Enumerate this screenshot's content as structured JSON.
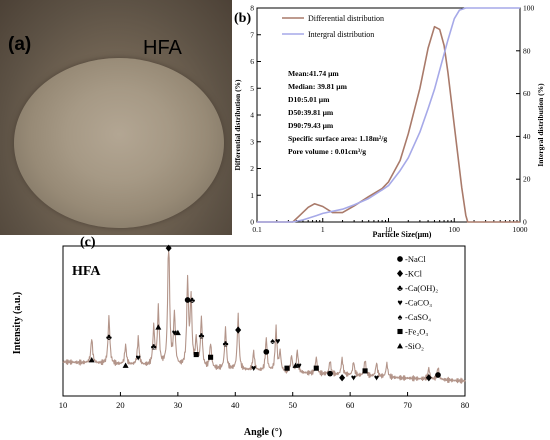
{
  "panel_a": {
    "label": "(a)",
    "sample_label": "HFA"
  },
  "colors": {
    "differential": "#a97a6a",
    "integral": "#a6a9e8",
    "xrd": "#b3958a"
  },
  "chart_data": [
    {
      "type": "line",
      "panel_label": "(b)",
      "xscale": "log",
      "xlim": [
        0.1,
        1000
      ],
      "ylim_left": [
        0,
        8
      ],
      "ylim_right": [
        0,
        100
      ],
      "xlabel": "Particle Size(μm)",
      "ylabel_left": "Differential distribution (%)",
      "ylabel_right": "Intergral distribution (%)",
      "x_ticks": [
        "0.1",
        "1",
        "10",
        "100",
        "1000"
      ],
      "y_left_ticks": [
        "0",
        "1",
        "2",
        "3",
        "4",
        "5",
        "6",
        "7",
        "8"
      ],
      "y_right_ticks": [
        "0",
        "20",
        "40",
        "60",
        "80",
        "100"
      ],
      "legend": [
        "Differential distribution",
        "Intergral distribution"
      ],
      "annotation_lines": [
        "Mean:41.74 μm",
        "Median: 39.81 μm",
        "D10:5.01 μm",
        "D50:39.81 μm",
        "D90:79.43 μm",
        "Specific surface area: 1.18m²/g",
        "Pore volume : 0.01cm³/g"
      ],
      "series": [
        {
          "name": "Differential distribution",
          "axis": "left",
          "x": [
            0.1,
            0.35,
            0.45,
            0.6,
            0.75,
            1.0,
            1.4,
            2.0,
            3.0,
            5.0,
            8.0,
            10.0,
            15,
            20,
            30,
            40,
            50,
            60,
            70,
            80,
            100,
            130,
            150,
            160,
            1000
          ],
          "y": [
            0,
            0,
            0.25,
            0.55,
            0.68,
            0.58,
            0.35,
            0.35,
            0.6,
            0.95,
            1.25,
            1.5,
            2.3,
            3.3,
            5.0,
            6.5,
            7.3,
            7.2,
            6.6,
            5.6,
            3.6,
            1.3,
            0.25,
            0,
            0
          ]
        },
        {
          "name": "Intergral distribution",
          "axis": "right",
          "x": [
            0.1,
            0.35,
            0.5,
            0.8,
            1.0,
            2.0,
            3.0,
            5.0,
            8.0,
            10,
            15,
            20,
            30,
            40,
            50,
            60,
            80,
            100,
            120,
            150,
            200,
            1000
          ],
          "y": [
            0,
            0,
            1,
            3,
            4,
            6,
            8,
            11,
            15,
            17,
            24,
            30,
            42,
            53,
            62,
            71,
            85,
            95,
            99,
            100,
            100,
            100
          ]
        }
      ]
    },
    {
      "type": "line",
      "panel_label": "(c)",
      "title_label": "HFA",
      "xlim": [
        10,
        80
      ],
      "x_ticks": [
        "10",
        "20",
        "30",
        "40",
        "50",
        "60",
        "70",
        "80"
      ],
      "xlabel": "Angle (°)",
      "ylabel": "Intensity (a.u.)",
      "legend": [
        "-NaCl",
        "-KCl",
        "-Ca(OH)₂",
        "-CaCO₃",
        "-CaSO₄",
        "-Fe₂O₃",
        "-SiO₂"
      ],
      "legend_icons": [
        "circle-icon",
        "diamond-icon",
        "club-icon",
        "heart-icon",
        "spade-icon",
        "square-icon",
        "triangle-icon"
      ],
      "peaks": [
        {
          "x": 15.0,
          "height": 0.18,
          "phase": "SiO2"
        },
        {
          "x": 18.0,
          "height": 0.35,
          "phase": "Ca(OH)2"
        },
        {
          "x": 20.9,
          "height": 0.14,
          "phase": "SiO2"
        },
        {
          "x": 23.1,
          "height": 0.2,
          "phase": "CaCO3"
        },
        {
          "x": 25.8,
          "height": 0.28,
          "phase": "SiO2"
        },
        {
          "x": 26.6,
          "height": 0.42,
          "phase": "SiO2"
        },
        {
          "x": 28.4,
          "height": 1.0,
          "phase": "KCl"
        },
        {
          "x": 29.4,
          "height": 0.38,
          "phase": "CaCO3"
        },
        {
          "x": 31.7,
          "height": 0.62,
          "phase": "NaCl"
        },
        {
          "x": 32.3,
          "height": 0.5,
          "phase": "Ca(OH)2"
        },
        {
          "x": 33.2,
          "height": 0.2,
          "phase": "Fe2O3"
        },
        {
          "x": 34.1,
          "height": 0.36,
          "phase": "Ca(OH)2"
        },
        {
          "x": 35.7,
          "height": 0.18,
          "phase": "Fe2O3"
        },
        {
          "x": 38.3,
          "height": 0.3,
          "phase": "Ca(OH)2"
        },
        {
          "x": 40.5,
          "height": 0.4,
          "phase": "KCl"
        },
        {
          "x": 43.2,
          "height": 0.14,
          "phase": "CaCO3"
        },
        {
          "x": 45.4,
          "height": 0.24,
          "phase": "NaCl"
        },
        {
          "x": 47.1,
          "height": 0.32,
          "phase": "CaCO3"
        },
        {
          "x": 47.8,
          "height": 0.14,
          "phase": "Ca(OH)2"
        },
        {
          "x": 49.8,
          "height": 0.12,
          "phase": "Fe2O3"
        },
        {
          "x": 50.8,
          "height": 0.16,
          "phase": "Ca(OH)2"
        },
        {
          "x": 54.1,
          "height": 0.12,
          "phase": "Fe2O3"
        },
        {
          "x": 56.5,
          "height": 0.1,
          "phase": "NaCl"
        },
        {
          "x": 58.6,
          "height": 0.12,
          "phase": "KCl"
        },
        {
          "x": 60.6,
          "height": 0.1,
          "phase": "CaCO3"
        },
        {
          "x": 62.6,
          "height": 0.12,
          "phase": "Fe2O3"
        },
        {
          "x": 64.6,
          "height": 0.1,
          "phase": "CaCO3"
        },
        {
          "x": 66.4,
          "height": 0.1,
          "phase": "KCl"
        },
        {
          "x": 73.7,
          "height": 0.08,
          "phase": "KCl"
        },
        {
          "x": 75.3,
          "height": 0.09,
          "phase": "NaCl"
        }
      ],
      "peak_markers": [
        {
          "x": 15.0,
          "y": 0.22,
          "icon": "triangle-icon"
        },
        {
          "x": 18.0,
          "y": 0.39,
          "icon": "club-icon"
        },
        {
          "x": 20.9,
          "y": 0.18,
          "icon": "triangle-icon"
        },
        {
          "x": 23.1,
          "y": 0.24,
          "icon": "heart-icon"
        },
        {
          "x": 25.8,
          "y": 0.32,
          "icon": "club-icon"
        },
        {
          "x": 26.6,
          "y": 0.46,
          "icon": "triangle-icon"
        },
        {
          "x": 28.4,
          "y": 1.04,
          "icon": "diamond-icon"
        },
        {
          "x": 29.4,
          "y": 0.42,
          "icon": "heart-icon"
        },
        {
          "x": 30.0,
          "y": 0.42,
          "icon": "triangle-icon"
        },
        {
          "x": 31.7,
          "y": 0.66,
          "icon": "circle-icon"
        },
        {
          "x": 32.5,
          "y": 0.66,
          "icon": "club-icon"
        },
        {
          "x": 33.2,
          "y": 0.26,
          "icon": "square-icon"
        },
        {
          "x": 34.1,
          "y": 0.4,
          "icon": "club-icon"
        },
        {
          "x": 35.7,
          "y": 0.24,
          "icon": "square-icon"
        },
        {
          "x": 38.3,
          "y": 0.34,
          "icon": "club-icon"
        },
        {
          "x": 40.5,
          "y": 0.44,
          "icon": "diamond-icon"
        },
        {
          "x": 43.2,
          "y": 0.16,
          "icon": "heart-icon"
        },
        {
          "x": 45.4,
          "y": 0.28,
          "icon": "circle-icon"
        },
        {
          "x": 46.5,
          "y": 0.36,
          "icon": "spade-icon"
        },
        {
          "x": 47.4,
          "y": 0.36,
          "icon": "heart-icon"
        },
        {
          "x": 49.0,
          "y": 0.16,
          "icon": "square-icon"
        },
        {
          "x": 50.5,
          "y": 0.18,
          "icon": "triangle-icon"
        },
        {
          "x": 51.1,
          "y": 0.18,
          "icon": "heart-icon"
        },
        {
          "x": 54.1,
          "y": 0.16,
          "icon": "square-icon"
        },
        {
          "x": 56.5,
          "y": 0.12,
          "icon": "circle-icon"
        },
        {
          "x": 58.6,
          "y": 0.09,
          "icon": "diamond-icon"
        },
        {
          "x": 60.6,
          "y": 0.09,
          "icon": "heart-icon"
        },
        {
          "x": 62.6,
          "y": 0.14,
          "icon": "square-icon"
        },
        {
          "x": 64.6,
          "y": 0.09,
          "icon": "heart-icon"
        },
        {
          "x": 73.7,
          "y": 0.09,
          "icon": "diamond-icon"
        },
        {
          "x": 75.3,
          "y": 0.11,
          "icon": "circle-icon"
        }
      ]
    }
  ]
}
